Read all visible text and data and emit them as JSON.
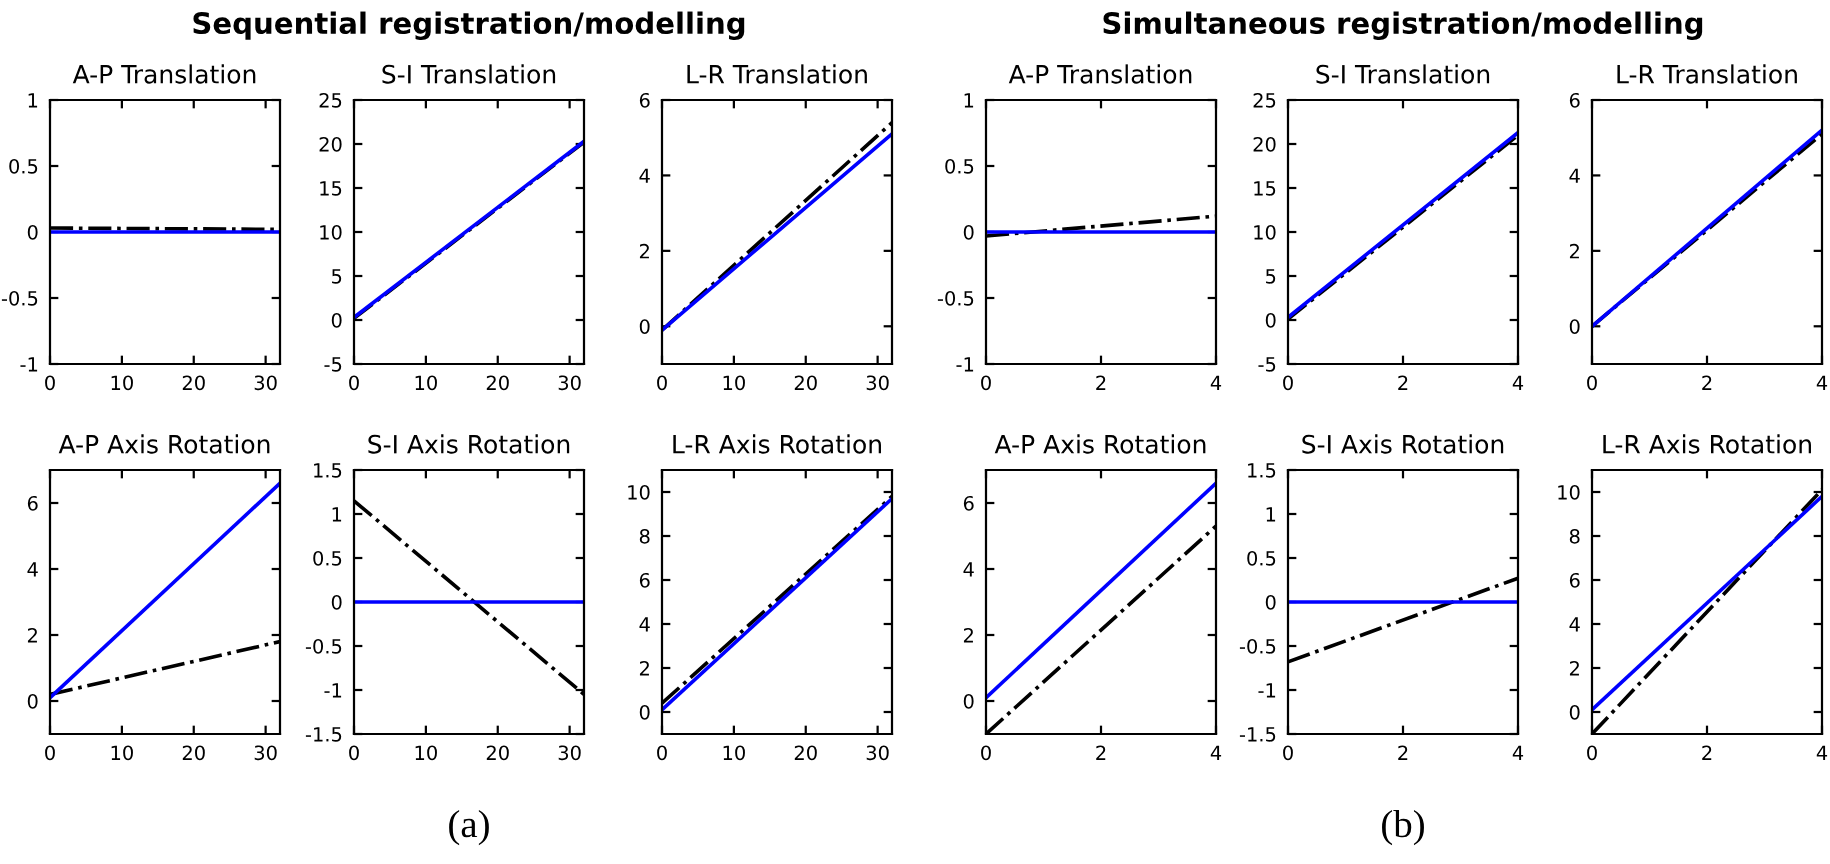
{
  "chart_data": [
    {
      "type": "line",
      "title": "A-P Translation",
      "x": [
        0,
        32
      ],
      "xlim": [
        0,
        32
      ],
      "xticks": [
        0,
        10,
        20,
        30
      ],
      "ylim": [
        -1,
        1
      ],
      "yticks": [
        -1,
        -0.5,
        0,
        0.5,
        1
      ],
      "grid": false,
      "legend": false,
      "series": [
        {
          "color": "#000000",
          "line_style": "dashdot",
          "values": [
            0.03,
            0.02
          ]
        },
        {
          "color": "#0000ff",
          "line_style": "solid",
          "values": [
            0,
            0
          ]
        }
      ]
    },
    {
      "type": "line",
      "title": "S-I Translation",
      "annotations": [
        "Sequential registration/modelling"
      ],
      "x": [
        0,
        32
      ],
      "xlim": [
        0,
        32
      ],
      "xticks": [
        0,
        10,
        20,
        30
      ],
      "ylim": [
        -5,
        25
      ],
      "yticks": [
        -5,
        0,
        5,
        10,
        15,
        20,
        25
      ],
      "grid": false,
      "legend": false,
      "series": [
        {
          "color": "#000000",
          "line_style": "dashdot",
          "values": [
            0.2,
            20.2
          ]
        },
        {
          "color": "#0000ff",
          "line_style": "solid",
          "values": [
            0.3,
            20.3
          ]
        }
      ]
    },
    {
      "type": "line",
      "title": "L-R Translation",
      "x": [
        0,
        32
      ],
      "xlim": [
        0,
        32
      ],
      "xticks": [
        0,
        10,
        20,
        30
      ],
      "ylim": [
        -1,
        6
      ],
      "yticks": [
        0,
        2,
        4,
        6
      ],
      "grid": false,
      "legend": false,
      "series": [
        {
          "color": "#000000",
          "line_style": "dashdot",
          "values": [
            -0.1,
            5.4
          ]
        },
        {
          "color": "#0000ff",
          "line_style": "solid",
          "values": [
            -0.1,
            5.1
          ]
        }
      ]
    },
    {
      "type": "line",
      "title": "A-P Axis Rotation",
      "x": [
        0,
        32
      ],
      "xlim": [
        0,
        32
      ],
      "xticks": [
        0,
        10,
        20,
        30
      ],
      "ylim": [
        -1,
        7
      ],
      "yticks": [
        0,
        2,
        4,
        6
      ],
      "grid": false,
      "legend": false,
      "series": [
        {
          "color": "#000000",
          "line_style": "dashdot",
          "values": [
            0.2,
            1.8
          ]
        },
        {
          "color": "#0000ff",
          "line_style": "solid",
          "values": [
            0.1,
            6.6
          ]
        }
      ]
    },
    {
      "type": "line",
      "title": "S-I Axis Rotation",
      "annotations": [
        "(a)"
      ],
      "x": [
        0,
        32
      ],
      "xlim": [
        0,
        32
      ],
      "xticks": [
        0,
        10,
        20,
        30
      ],
      "ylim": [
        -1.5,
        1.5
      ],
      "yticks": [
        -1.5,
        -1,
        -0.5,
        0,
        0.5,
        1,
        1.5
      ],
      "grid": false,
      "legend": false,
      "series": [
        {
          "color": "#000000",
          "line_style": "dashdot",
          "values": [
            1.15,
            -1.05
          ]
        },
        {
          "color": "#0000ff",
          "line_style": "solid",
          "values": [
            0,
            0
          ]
        }
      ]
    },
    {
      "type": "line",
      "title": "L-R Axis Rotation",
      "x": [
        0,
        32
      ],
      "xlim": [
        0,
        32
      ],
      "xticks": [
        0,
        10,
        20,
        30
      ],
      "ylim": [
        -1,
        11
      ],
      "yticks": [
        0,
        2,
        4,
        6,
        8,
        10
      ],
      "grid": false,
      "legend": false,
      "series": [
        {
          "color": "#000000",
          "line_style": "dashdot",
          "values": [
            0.4,
            9.8
          ]
        },
        {
          "color": "#0000ff",
          "line_style": "solid",
          "values": [
            0.1,
            9.7
          ]
        }
      ]
    },
    {
      "type": "line",
      "title": "A-P Translation",
      "x": [
        0,
        4
      ],
      "xlim": [
        0,
        4
      ],
      "xticks": [
        0,
        2,
        4
      ],
      "ylim": [
        -1,
        1
      ],
      "yticks": [
        -1,
        -0.5,
        0,
        0.5,
        1
      ],
      "grid": false,
      "legend": false,
      "series": [
        {
          "color": "#000000",
          "line_style": "dashdot",
          "values": [
            -0.03,
            0.12
          ]
        },
        {
          "color": "#0000ff",
          "line_style": "solid",
          "values": [
            0,
            0
          ]
        }
      ]
    },
    {
      "type": "line",
      "title": "S-I Translation",
      "annotations": [
        "Simultaneous registration/modelling"
      ],
      "x": [
        0,
        4
      ],
      "xlim": [
        0,
        4
      ],
      "xticks": [
        0,
        2,
        4
      ],
      "ylim": [
        -5,
        25
      ],
      "yticks": [
        -5,
        0,
        5,
        10,
        15,
        20,
        25
      ],
      "grid": false,
      "legend": false,
      "series": [
        {
          "color": "#000000",
          "line_style": "dashdot",
          "values": [
            0.1,
            21
          ]
        },
        {
          "color": "#0000ff",
          "line_style": "solid",
          "values": [
            0.3,
            21.3
          ]
        }
      ]
    },
    {
      "type": "line",
      "title": "L-R Translation",
      "x": [
        0,
        4
      ],
      "xlim": [
        0,
        4
      ],
      "xticks": [
        0,
        2,
        4
      ],
      "ylim": [
        -1,
        6
      ],
      "yticks": [
        0,
        2,
        4,
        6
      ],
      "grid": false,
      "legend": false,
      "series": [
        {
          "color": "#000000",
          "line_style": "dashdot",
          "values": [
            0,
            5.1
          ]
        },
        {
          "color": "#0000ff",
          "line_style": "solid",
          "values": [
            0,
            5.2
          ]
        }
      ]
    },
    {
      "type": "line",
      "title": "A-P Axis Rotation",
      "x": [
        0,
        4
      ],
      "xlim": [
        0,
        4
      ],
      "xticks": [
        0,
        2,
        4
      ],
      "ylim": [
        -1,
        7
      ],
      "yticks": [
        0,
        2,
        4,
        6
      ],
      "grid": false,
      "legend": false,
      "series": [
        {
          "color": "#000000",
          "line_style": "dashdot",
          "values": [
            -1,
            5.3
          ]
        },
        {
          "color": "#0000ff",
          "line_style": "solid",
          "values": [
            0.1,
            6.6
          ]
        }
      ]
    },
    {
      "type": "line",
      "title": "S-I Axis Rotation",
      "annotations": [
        "(b)"
      ],
      "x": [
        0,
        4
      ],
      "xlim": [
        0,
        4
      ],
      "xticks": [
        0,
        2,
        4
      ],
      "ylim": [
        -1.5,
        1.5
      ],
      "yticks": [
        -1.5,
        -1,
        -0.5,
        0,
        0.5,
        1,
        1.5
      ],
      "grid": false,
      "legend": false,
      "series": [
        {
          "color": "#000000",
          "line_style": "dashdot",
          "values": [
            -0.68,
            0.27
          ]
        },
        {
          "color": "#0000ff",
          "line_style": "solid",
          "values": [
            0,
            0
          ]
        }
      ]
    },
    {
      "type": "line",
      "title": "L-R Axis Rotation",
      "x": [
        0,
        4
      ],
      "xlim": [
        0,
        4
      ],
      "xticks": [
        0,
        2,
        4
      ],
      "ylim": [
        -1,
        11
      ],
      "yticks": [
        0,
        2,
        4,
        6,
        8,
        10
      ],
      "grid": false,
      "legend": false,
      "series": [
        {
          "color": "#000000",
          "line_style": "dashdot",
          "values": [
            -1,
            10.1
          ]
        },
        {
          "color": "#0000ff",
          "line_style": "solid",
          "values": [
            0.1,
            9.8
          ]
        }
      ]
    }
  ]
}
